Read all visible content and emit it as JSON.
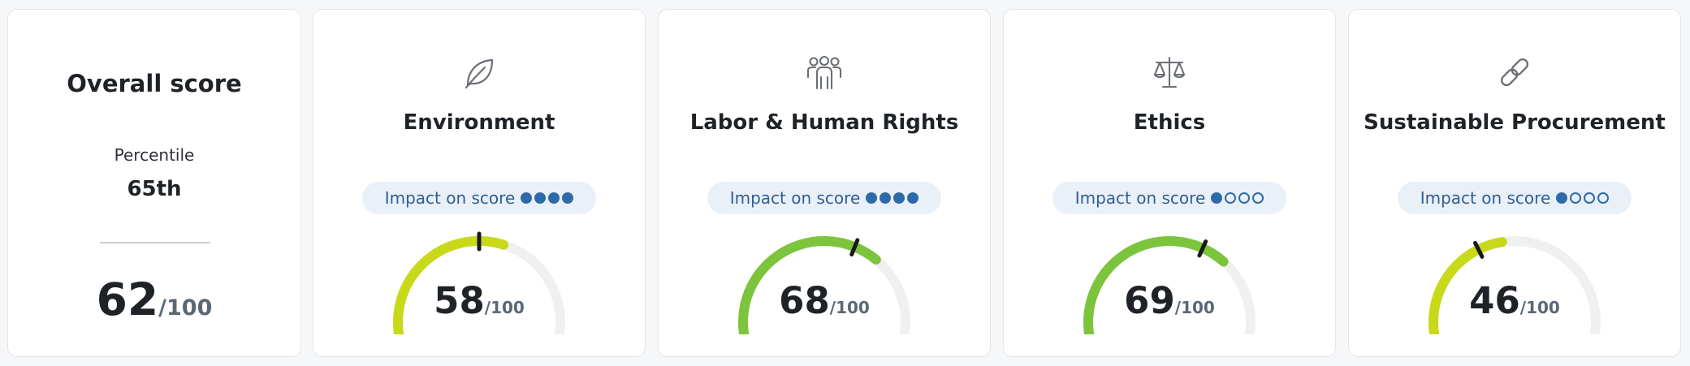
{
  "overall": {
    "title": "Overall score",
    "percentile_label": "Percentile",
    "percentile_value": "65th",
    "score": "62",
    "denominator": "/100"
  },
  "colors": {
    "gauge_track": "#f0f0f0",
    "gauge_low": "#c8d91a",
    "gauge_high": "#7cc43c",
    "impact_text": "#2f5f93",
    "impact_bg": "#eaf0f7",
    "needle": "#1a1a1a"
  },
  "categories": [
    {
      "title": "Environment",
      "icon": "leaf-icon",
      "impact_label": "Impact on score",
      "impact_level": 4,
      "impact_max": 4,
      "score": "58",
      "score_value": 58,
      "denominator": "/100"
    },
    {
      "title": "Labor & Human Rights",
      "icon": "people-icon",
      "impact_label": "Impact on score",
      "impact_level": 4,
      "impact_max": 4,
      "score": "68",
      "score_value": 68,
      "denominator": "/100"
    },
    {
      "title": "Ethics",
      "icon": "scales-icon",
      "impact_label": "Impact on score",
      "impact_level": 1,
      "impact_max": 4,
      "score": "69",
      "score_value": 69,
      "denominator": "/100"
    },
    {
      "title": "Sustainable Procurement",
      "icon": "chain-link-icon",
      "impact_label": "Impact on score",
      "impact_level": 1,
      "impact_max": 4,
      "score": "46",
      "score_value": 46,
      "denominator": "/100"
    }
  ]
}
